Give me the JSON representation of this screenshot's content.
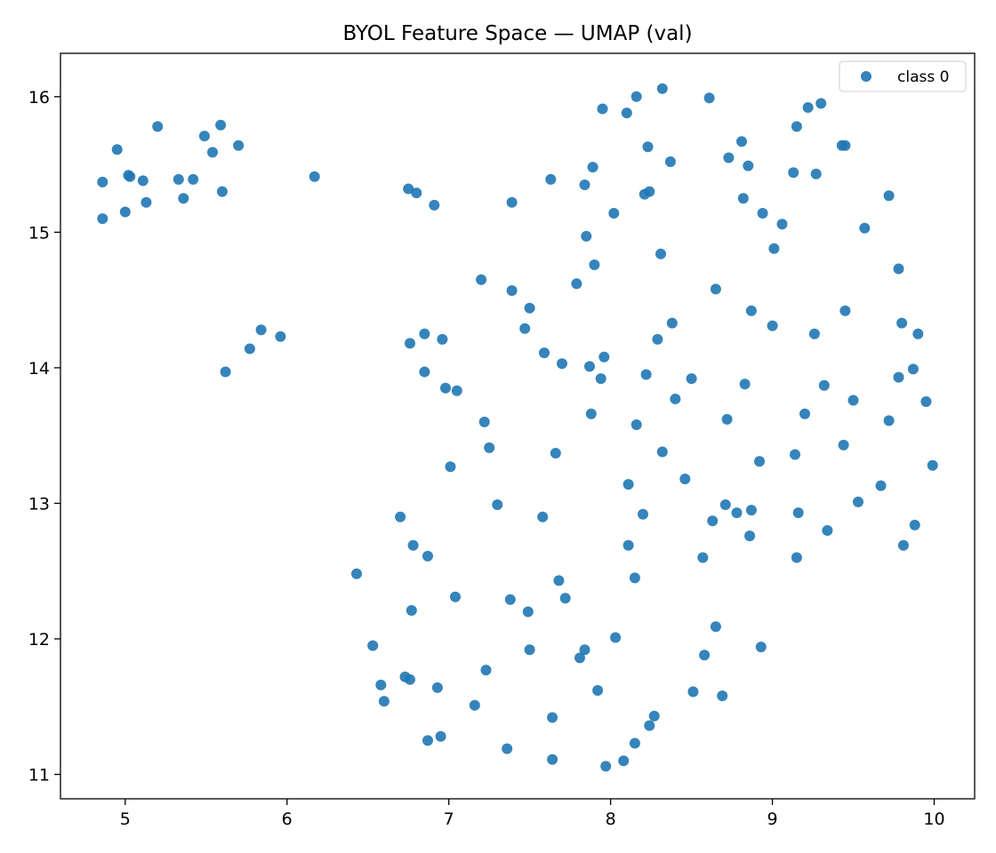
{
  "chart_data": {
    "type": "scatter",
    "title": "BYOL Feature Space — UMAP (val)",
    "xlabel": "",
    "ylabel": "",
    "xlim": [
      4.6,
      10.25
    ],
    "ylim": [
      10.82,
      16.32
    ],
    "xticks": [
      5,
      6,
      7,
      8,
      9,
      10
    ],
    "yticks": [
      11,
      12,
      13,
      14,
      15,
      16
    ],
    "grid": false,
    "legend_position": "top-right",
    "colors": {
      "point": "#1f77b4",
      "axes": "#000000",
      "legend_border": "#cccccc"
    },
    "series": [
      {
        "name": "class 0",
        "points": [
          [
            4.86,
            15.37
          ],
          [
            4.86,
            15.1
          ],
          [
            4.95,
            15.61
          ],
          [
            5.0,
            15.15
          ],
          [
            5.02,
            15.42
          ],
          [
            5.03,
            15.41
          ],
          [
            5.11,
            15.38
          ],
          [
            5.13,
            15.22
          ],
          [
            5.2,
            15.78
          ],
          [
            5.33,
            15.39
          ],
          [
            5.36,
            15.25
          ],
          [
            5.42,
            15.39
          ],
          [
            5.49,
            15.71
          ],
          [
            5.54,
            15.59
          ],
          [
            5.59,
            15.79
          ],
          [
            5.6,
            15.3
          ],
          [
            5.62,
            13.97
          ],
          [
            5.7,
            15.64
          ],
          [
            5.77,
            14.14
          ],
          [
            5.84,
            14.28
          ],
          [
            5.96,
            14.23
          ],
          [
            6.17,
            15.41
          ],
          [
            6.43,
            12.48
          ],
          [
            6.53,
            11.95
          ],
          [
            6.58,
            11.66
          ],
          [
            6.6,
            11.54
          ],
          [
            6.7,
            12.9
          ],
          [
            6.73,
            11.72
          ],
          [
            6.75,
            15.32
          ],
          [
            6.76,
            14.18
          ],
          [
            6.76,
            11.7
          ],
          [
            6.77,
            12.21
          ],
          [
            6.78,
            12.69
          ],
          [
            6.8,
            15.29
          ],
          [
            6.85,
            14.25
          ],
          [
            6.85,
            13.97
          ],
          [
            6.87,
            12.61
          ],
          [
            6.87,
            11.25
          ],
          [
            6.91,
            15.2
          ],
          [
            6.93,
            11.64
          ],
          [
            6.95,
            11.28
          ],
          [
            6.96,
            14.21
          ],
          [
            6.98,
            13.85
          ],
          [
            7.01,
            13.27
          ],
          [
            7.04,
            12.31
          ],
          [
            7.05,
            13.83
          ],
          [
            7.16,
            11.51
          ],
          [
            7.2,
            14.65
          ],
          [
            7.22,
            13.6
          ],
          [
            7.23,
            11.77
          ],
          [
            7.25,
            13.41
          ],
          [
            7.3,
            12.99
          ],
          [
            7.36,
            11.19
          ],
          [
            7.38,
            12.29
          ],
          [
            7.39,
            14.57
          ],
          [
            7.39,
            15.22
          ],
          [
            7.47,
            14.29
          ],
          [
            7.49,
            12.2
          ],
          [
            7.5,
            14.44
          ],
          [
            7.5,
            11.92
          ],
          [
            7.58,
            12.9
          ],
          [
            7.59,
            14.11
          ],
          [
            7.63,
            15.39
          ],
          [
            7.64,
            11.42
          ],
          [
            7.64,
            11.11
          ],
          [
            7.66,
            13.37
          ],
          [
            7.68,
            12.43
          ],
          [
            7.7,
            14.03
          ],
          [
            7.72,
            12.3
          ],
          [
            7.79,
            14.62
          ],
          [
            7.81,
            11.86
          ],
          [
            7.84,
            11.92
          ],
          [
            7.84,
            15.35
          ],
          [
            7.85,
            14.97
          ],
          [
            7.87,
            14.01
          ],
          [
            7.88,
            13.66
          ],
          [
            7.89,
            15.48
          ],
          [
            7.9,
            14.76
          ],
          [
            7.92,
            11.62
          ],
          [
            7.94,
            13.92
          ],
          [
            7.95,
            15.91
          ],
          [
            7.96,
            14.08
          ],
          [
            7.97,
            11.06
          ],
          [
            8.02,
            15.14
          ],
          [
            8.03,
            12.01
          ],
          [
            8.08,
            11.1
          ],
          [
            8.1,
            15.88
          ],
          [
            8.11,
            13.14
          ],
          [
            8.11,
            12.69
          ],
          [
            8.15,
            12.45
          ],
          [
            8.15,
            11.23
          ],
          [
            8.16,
            16.0
          ],
          [
            8.16,
            13.58
          ],
          [
            8.2,
            12.92
          ],
          [
            8.21,
            15.28
          ],
          [
            8.22,
            13.95
          ],
          [
            8.23,
            15.63
          ],
          [
            8.24,
            15.3
          ],
          [
            8.24,
            11.36
          ],
          [
            8.27,
            11.43
          ],
          [
            8.29,
            14.21
          ],
          [
            8.31,
            14.84
          ],
          [
            8.32,
            13.38
          ],
          [
            8.32,
            16.06
          ],
          [
            8.37,
            15.52
          ],
          [
            8.38,
            14.33
          ],
          [
            8.4,
            13.77
          ],
          [
            8.46,
            13.18
          ],
          [
            8.5,
            13.92
          ],
          [
            8.51,
            11.61
          ],
          [
            8.57,
            12.6
          ],
          [
            8.58,
            11.88
          ],
          [
            8.61,
            15.99
          ],
          [
            8.63,
            12.87
          ],
          [
            8.65,
            14.58
          ],
          [
            8.65,
            12.09
          ],
          [
            8.69,
            11.58
          ],
          [
            8.71,
            12.99
          ],
          [
            8.72,
            13.62
          ],
          [
            8.73,
            15.55
          ],
          [
            8.78,
            12.93
          ],
          [
            8.81,
            15.67
          ],
          [
            8.82,
            15.25
          ],
          [
            8.83,
            13.88
          ],
          [
            8.85,
            15.49
          ],
          [
            8.86,
            12.76
          ],
          [
            8.87,
            14.42
          ],
          [
            8.87,
            12.95
          ],
          [
            8.92,
            13.31
          ],
          [
            8.93,
            11.94
          ],
          [
            8.94,
            15.14
          ],
          [
            9.0,
            14.31
          ],
          [
            9.01,
            14.88
          ],
          [
            9.06,
            15.06
          ],
          [
            9.13,
            15.44
          ],
          [
            9.14,
            13.36
          ],
          [
            9.15,
            15.78
          ],
          [
            9.15,
            12.6
          ],
          [
            9.16,
            12.93
          ],
          [
            9.2,
            13.66
          ],
          [
            9.22,
            15.92
          ],
          [
            9.26,
            14.25
          ],
          [
            9.27,
            15.43
          ],
          [
            9.3,
            15.95
          ],
          [
            9.32,
            13.87
          ],
          [
            9.34,
            12.8
          ],
          [
            9.43,
            15.64
          ],
          [
            9.44,
            13.43
          ],
          [
            9.45,
            15.64
          ],
          [
            9.45,
            14.42
          ],
          [
            9.5,
            13.76
          ],
          [
            9.53,
            13.01
          ],
          [
            9.57,
            15.03
          ],
          [
            9.67,
            13.13
          ],
          [
            9.72,
            13.61
          ],
          [
            9.72,
            15.27
          ],
          [
            9.78,
            14.73
          ],
          [
            9.78,
            13.93
          ],
          [
            9.8,
            14.33
          ],
          [
            9.81,
            12.69
          ],
          [
            9.87,
            13.99
          ],
          [
            9.88,
            12.84
          ],
          [
            9.9,
            14.25
          ],
          [
            9.95,
            13.75
          ],
          [
            9.99,
            13.28
          ]
        ]
      }
    ]
  }
}
